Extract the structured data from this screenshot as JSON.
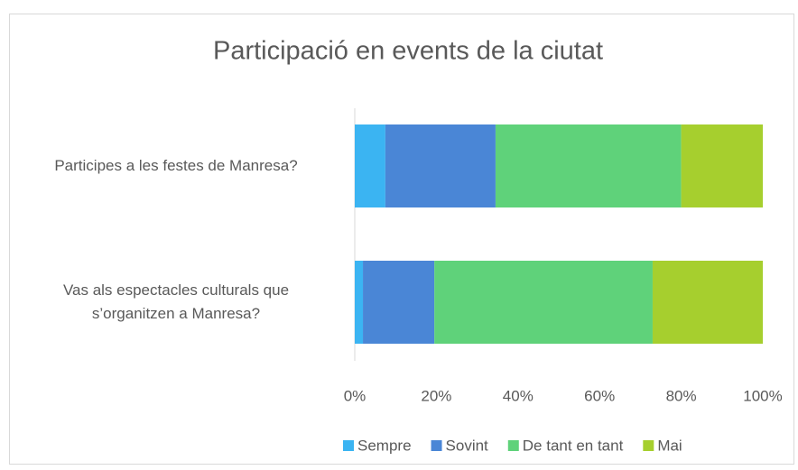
{
  "chart_data": {
    "type": "stacked_bar_horizontal",
    "title": "Participació en events de la ciutat",
    "categories": [
      "Participes a les festes de Manresa?",
      "Vas als espectacles culturals que s’organitzen a Manresa?"
    ],
    "series": [
      {
        "name": "Sempre",
        "color": "#3bb4f2",
        "values": [
          7.5,
          2
        ]
      },
      {
        "name": "Sovint",
        "color": "#4a86d6",
        "values": [
          27,
          17.5
        ]
      },
      {
        "name": "De tant en tant",
        "color": "#5fd27a",
        "values": [
          45.5,
          53.5
        ]
      },
      {
        "name": "Mai",
        "color": "#a6cf2e",
        "values": [
          20,
          27
        ]
      }
    ],
    "xlim": [
      0,
      100
    ],
    "xticks": [
      {
        "value": 0,
        "label": "0%"
      },
      {
        "value": 20,
        "label": "20%"
      },
      {
        "value": 40,
        "label": "40%"
      },
      {
        "value": 60,
        "label": "60%"
      },
      {
        "value": 80,
        "label": "80%"
      },
      {
        "value": 100,
        "label": "100%"
      }
    ],
    "legend": "bottom"
  }
}
